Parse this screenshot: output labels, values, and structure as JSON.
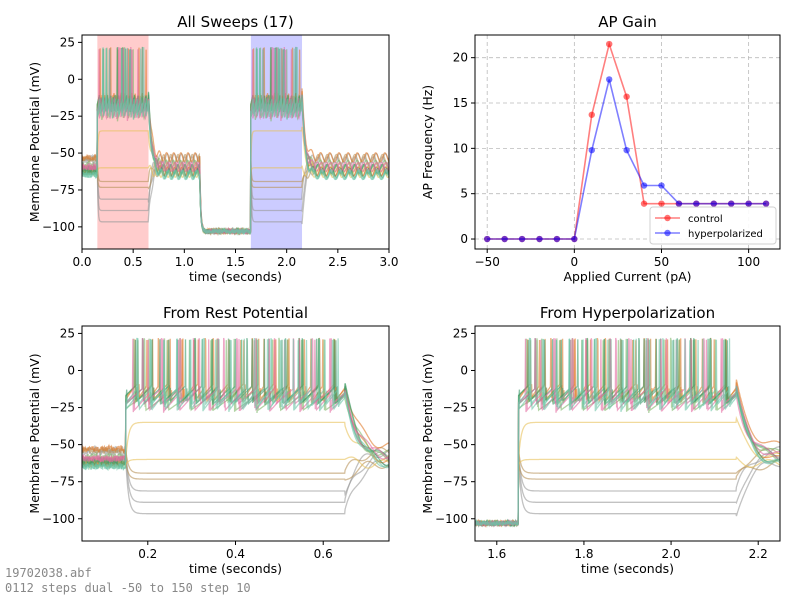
{
  "footer": {
    "line1": "19702038.abf",
    "line2": "0112 steps dual -50 to 150 step 10"
  },
  "colors": {
    "gray": "#9a9a9a",
    "tan": "#b8925a",
    "gold": "#e8c15a",
    "orange": "#e07a2a",
    "green": "#7fb86a",
    "teal": "#3a9a6a",
    "pink": "#e36aa0",
    "mint": "#6ac4a6",
    "control": "#ff0000",
    "hyperpolarized": "#0000ff",
    "shade_red": "#ff0000",
    "shade_blue": "#0000ff"
  },
  "chart_data": [
    {
      "type": "line",
      "title": "All Sweeps (17)",
      "xlabel": "time (seconds)",
      "ylabel": "Membrane Potential (mV)",
      "xlim": [
        0,
        3
      ],
      "ylim": [
        -115,
        30
      ],
      "xticks": [
        0.0,
        0.5,
        1.0,
        1.5,
        2.0,
        2.5,
        3.0
      ],
      "xtick_labels": [
        "0.0",
        "0.5",
        "1.0",
        "1.5",
        "2.0",
        "2.5",
        "3.0"
      ],
      "yticks": [
        -100,
        -75,
        -50,
        -25,
        0,
        25
      ],
      "ytick_labels": [
        "−100",
        "−75",
        "−50",
        "−25",
        "0",
        "25"
      ],
      "sweep_count": 17,
      "shaded_regions": [
        {
          "x0": 0.15,
          "x1": 0.65,
          "color": "red"
        },
        {
          "x0": 1.65,
          "x1": 2.15,
          "color": "blue"
        }
      ],
      "epochs": {
        "step1": [
          0.15,
          0.65
        ],
        "hyperpolarization": [
          1.15,
          1.65
        ],
        "step2": [
          1.65,
          2.15
        ]
      },
      "baseline_mv": -60,
      "hyperpolarized_mv": -103,
      "spike_peak_mv": 22,
      "plateau_mv": -15,
      "grid": false
    },
    {
      "type": "line",
      "title": "AP Gain",
      "xlabel": "Applied Current (pA)",
      "ylabel": "AP Frequency (Hz)",
      "xlim": [
        -57,
        118
      ],
      "ylim": [
        -1.1,
        22.5
      ],
      "xticks": [
        -50,
        0,
        50,
        100
      ],
      "xtick_labels": [
        "−50",
        "0",
        "50",
        "100"
      ],
      "yticks": [
        0,
        5,
        10,
        15,
        20
      ],
      "ytick_labels": [
        "0",
        "5",
        "10",
        "15",
        "20"
      ],
      "grid": true,
      "legend_position": "bottom-right",
      "x": [
        -50,
        -40,
        -30,
        -20,
        -10,
        0,
        10,
        20,
        30,
        40,
        50,
        60,
        70,
        80,
        90,
        100,
        110
      ],
      "series": [
        {
          "name": "control",
          "color": "red",
          "values": [
            0,
            0,
            0,
            0,
            0,
            0,
            13.7,
            21.5,
            15.7,
            3.9,
            3.9,
            3.9,
            3.9,
            3.9,
            3.9,
            3.9,
            3.9
          ]
        },
        {
          "name": "hyperpolarized",
          "color": "blue",
          "values": [
            0,
            0,
            0,
            0,
            0,
            0,
            9.8,
            17.6,
            9.8,
            5.9,
            5.9,
            3.9,
            3.9,
            3.9,
            3.9,
            3.9,
            3.9
          ]
        }
      ]
    },
    {
      "type": "line",
      "title": "From Rest Potential",
      "xlabel": "time (seconds)",
      "ylabel": "Membrane Potential (mV)",
      "xlim": [
        0.05,
        0.75
      ],
      "ylim": [
        -115,
        30
      ],
      "xticks": [
        0.2,
        0.4,
        0.6
      ],
      "xtick_labels": [
        "0.2",
        "0.4",
        "0.6"
      ],
      "yticks": [
        -100,
        -75,
        -50,
        -25,
        0,
        25
      ],
      "ytick_labels": [
        "−100",
        "−75",
        "−50",
        "−25",
        "0",
        "25"
      ],
      "step_window": [
        0.15,
        0.65
      ],
      "grid": false
    },
    {
      "type": "line",
      "title": "From Hyperpolarization",
      "xlabel": "time (seconds)",
      "ylabel": "Membrane Potential (mV)",
      "xlim": [
        1.55,
        2.25
      ],
      "ylim": [
        -115,
        30
      ],
      "xticks": [
        1.6,
        1.8,
        2.0,
        2.2
      ],
      "xtick_labels": [
        "1.6",
        "1.8",
        "2.0",
        "2.2"
      ],
      "yticks": [
        -100,
        -75,
        -50,
        -25,
        0,
        25
      ],
      "ytick_labels": [
        "−100",
        "−75",
        "−50",
        "−25",
        "0",
        "25"
      ],
      "step_window": [
        1.65,
        2.15
      ],
      "grid": false
    }
  ]
}
